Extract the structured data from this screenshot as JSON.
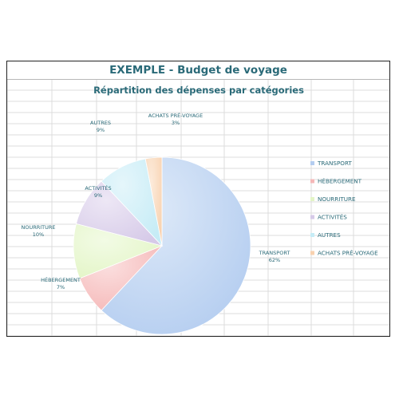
{
  "page_title": "EXEMPLE - Budget de voyage",
  "chart_data": {
    "type": "pie",
    "title": "Répartition des dépenses par catégories",
    "legend_position": "right",
    "grid": false,
    "slices": [
      {
        "name": "TRANSPORT",
        "value": 62,
        "label": "62%",
        "color": "#b4cdf0"
      },
      {
        "name": "HÉBERGEMENT",
        "value": 7,
        "label": "7%",
        "color": "#f5b8b8"
      },
      {
        "name": "NOURRITURE",
        "value": 10,
        "label": "10%",
        "color": "#e3f5c6"
      },
      {
        "name": "ACTIVITÉS",
        "value": 9,
        "label": "9%",
        "color": "#d6cae8"
      },
      {
        "name": "AUTRES",
        "value": 9,
        "label": "9%",
        "color": "#c6ecf6"
      },
      {
        "name": "ACHATS PRÉ-VOYAGE",
        "value": 3,
        "label": "3%",
        "color": "#f8d2b0"
      }
    ]
  }
}
